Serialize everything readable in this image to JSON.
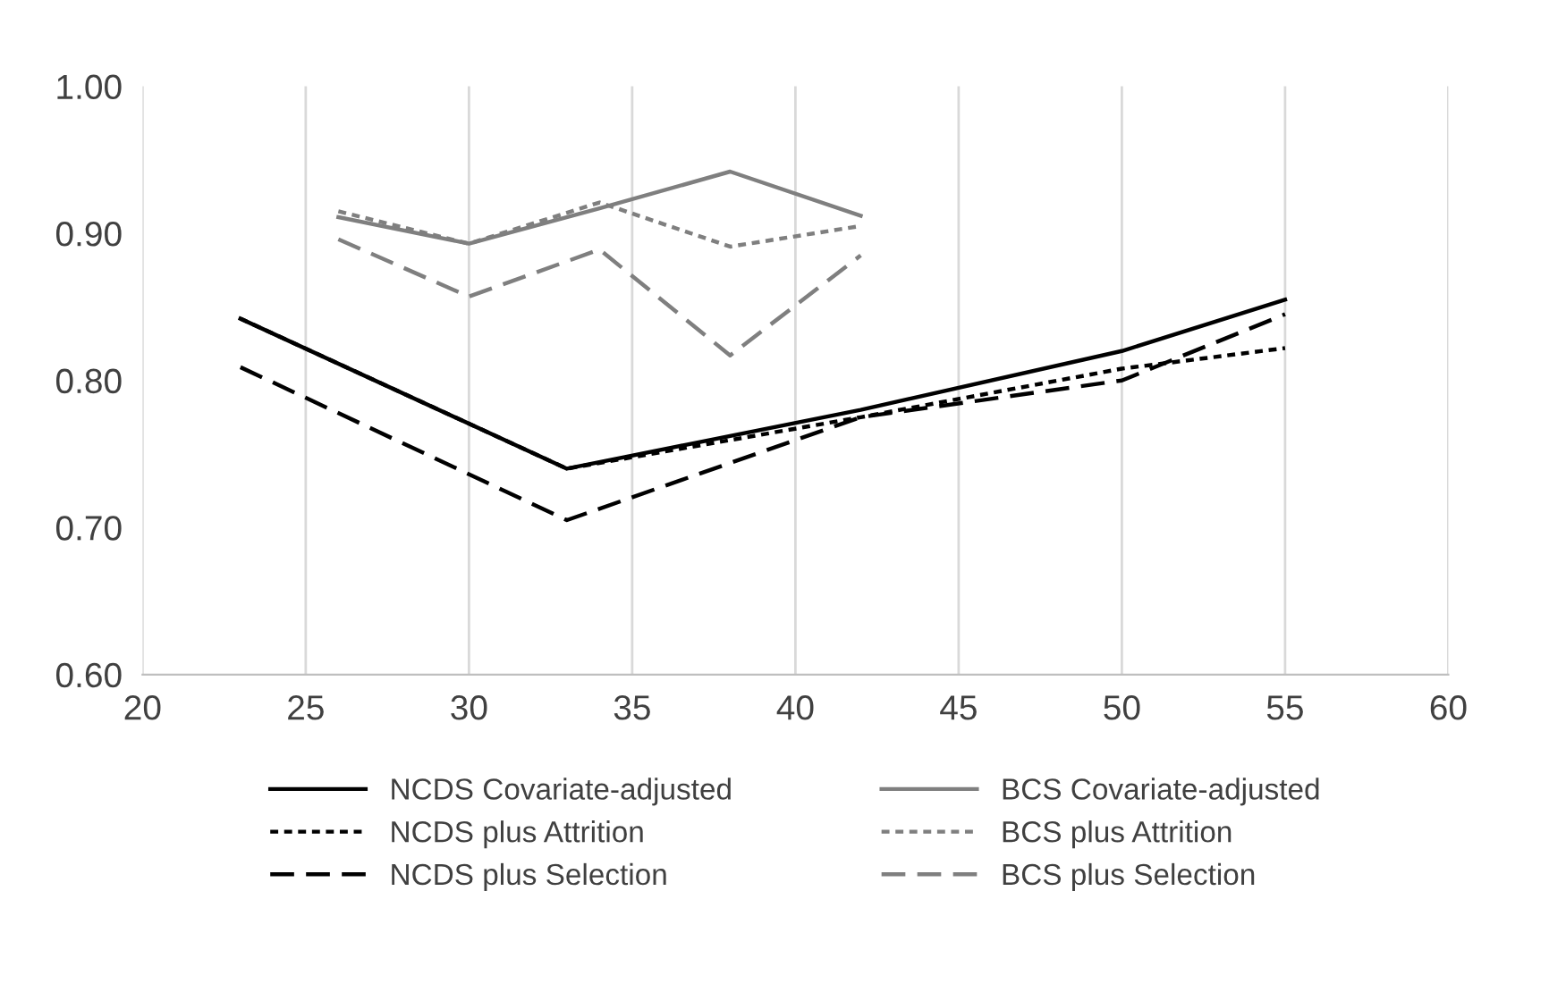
{
  "chart_data": {
    "type": "line",
    "xlim": [
      20,
      60
    ],
    "xticks": [
      20,
      25,
      30,
      35,
      40,
      45,
      50,
      55,
      60
    ],
    "ylim": [
      0.6,
      1.0
    ],
    "yticks": [
      {
        "value": 0.6,
        "label": "0.60"
      },
      {
        "value": 0.7,
        "label": "0.70"
      },
      {
        "value": 0.8,
        "label": "0.80"
      },
      {
        "value": 0.9,
        "label": "0.90"
      },
      {
        "value": 1.0,
        "label": "1.00"
      }
    ],
    "grid": "x",
    "legend": "bottom",
    "series": [
      {
        "name": "NCDS Covariate-adjusted",
        "color": "#000000",
        "line_style": "solid",
        "x": [
          23,
          33,
          42,
          50,
          55
        ],
        "values": [
          0.842,
          0.74,
          0.78,
          0.82,
          0.855
        ]
      },
      {
        "name": "BCS Covariate-adjusted",
        "color": "#7f7f7f",
        "line_style": "solid",
        "x": [
          26,
          30,
          34,
          38,
          42
        ],
        "values": [
          0.911,
          0.893,
          0.917,
          0.942,
          0.912
        ]
      },
      {
        "name": "NCDS plus Attrition",
        "color": "#000000",
        "line_style": "dotted",
        "x": [
          23,
          33,
          42,
          50,
          55
        ],
        "values": [
          0.842,
          0.74,
          0.775,
          0.808,
          0.822
        ]
      },
      {
        "name": "BCS plus Attrition",
        "color": "#7f7f7f",
        "line_style": "dotted",
        "x": [
          26,
          30,
          34,
          38,
          42
        ],
        "values": [
          0.915,
          0.893,
          0.921,
          0.891,
          0.905
        ]
      },
      {
        "name": "NCDS plus Selection",
        "color": "#000000",
        "line_style": "dashed",
        "x": [
          23,
          33,
          42,
          50,
          55
        ],
        "values": [
          0.809,
          0.705,
          0.775,
          0.8,
          0.845
        ]
      },
      {
        "name": "BCS plus Selection",
        "color": "#7f7f7f",
        "line_style": "dashed",
        "x": [
          26,
          30,
          34,
          38,
          42
        ],
        "values": [
          0.896,
          0.857,
          0.889,
          0.817,
          0.885
        ]
      }
    ]
  }
}
